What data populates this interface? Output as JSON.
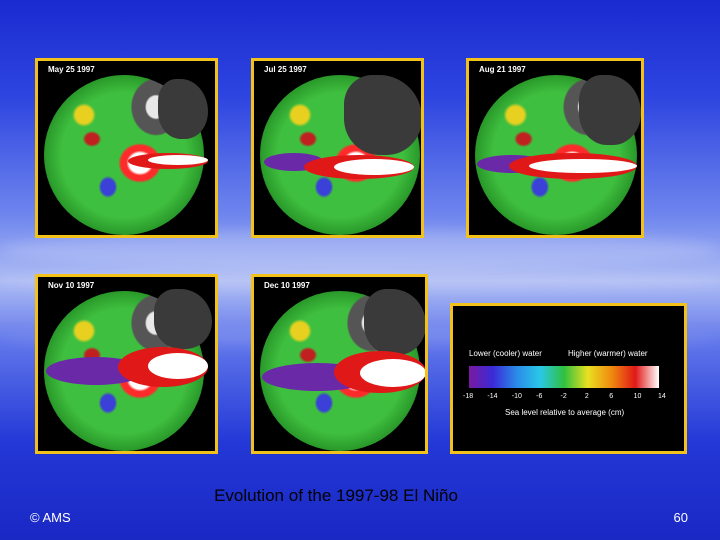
{
  "panels": [
    {
      "label": "May 25 1997"
    },
    {
      "label": "Jul 25 1997"
    },
    {
      "label": "Aug 21 1997"
    },
    {
      "label": "Nov 10 1997"
    },
    {
      "label": "Dec 10 1997"
    }
  ],
  "legend": {
    "lower_label": "Lower (cooler) water",
    "higher_label": "Higher (warmer) water",
    "ticks": [
      "-18",
      "-14",
      "-10",
      "-6",
      "-2",
      "2",
      "6",
      "10",
      "14"
    ],
    "axis_label": "Sea level relative to average (cm)",
    "scale_colors": [
      "#7a1aa0",
      "#3a2ad8",
      "#2a8ae8",
      "#2ac8e8",
      "#30c040",
      "#e8e020",
      "#f08a10",
      "#e01818",
      "#ffffff"
    ]
  },
  "caption": "Evolution of the 1997-98 El Niño",
  "footer": {
    "copyright": "© AMS",
    "page_number": "60"
  }
}
